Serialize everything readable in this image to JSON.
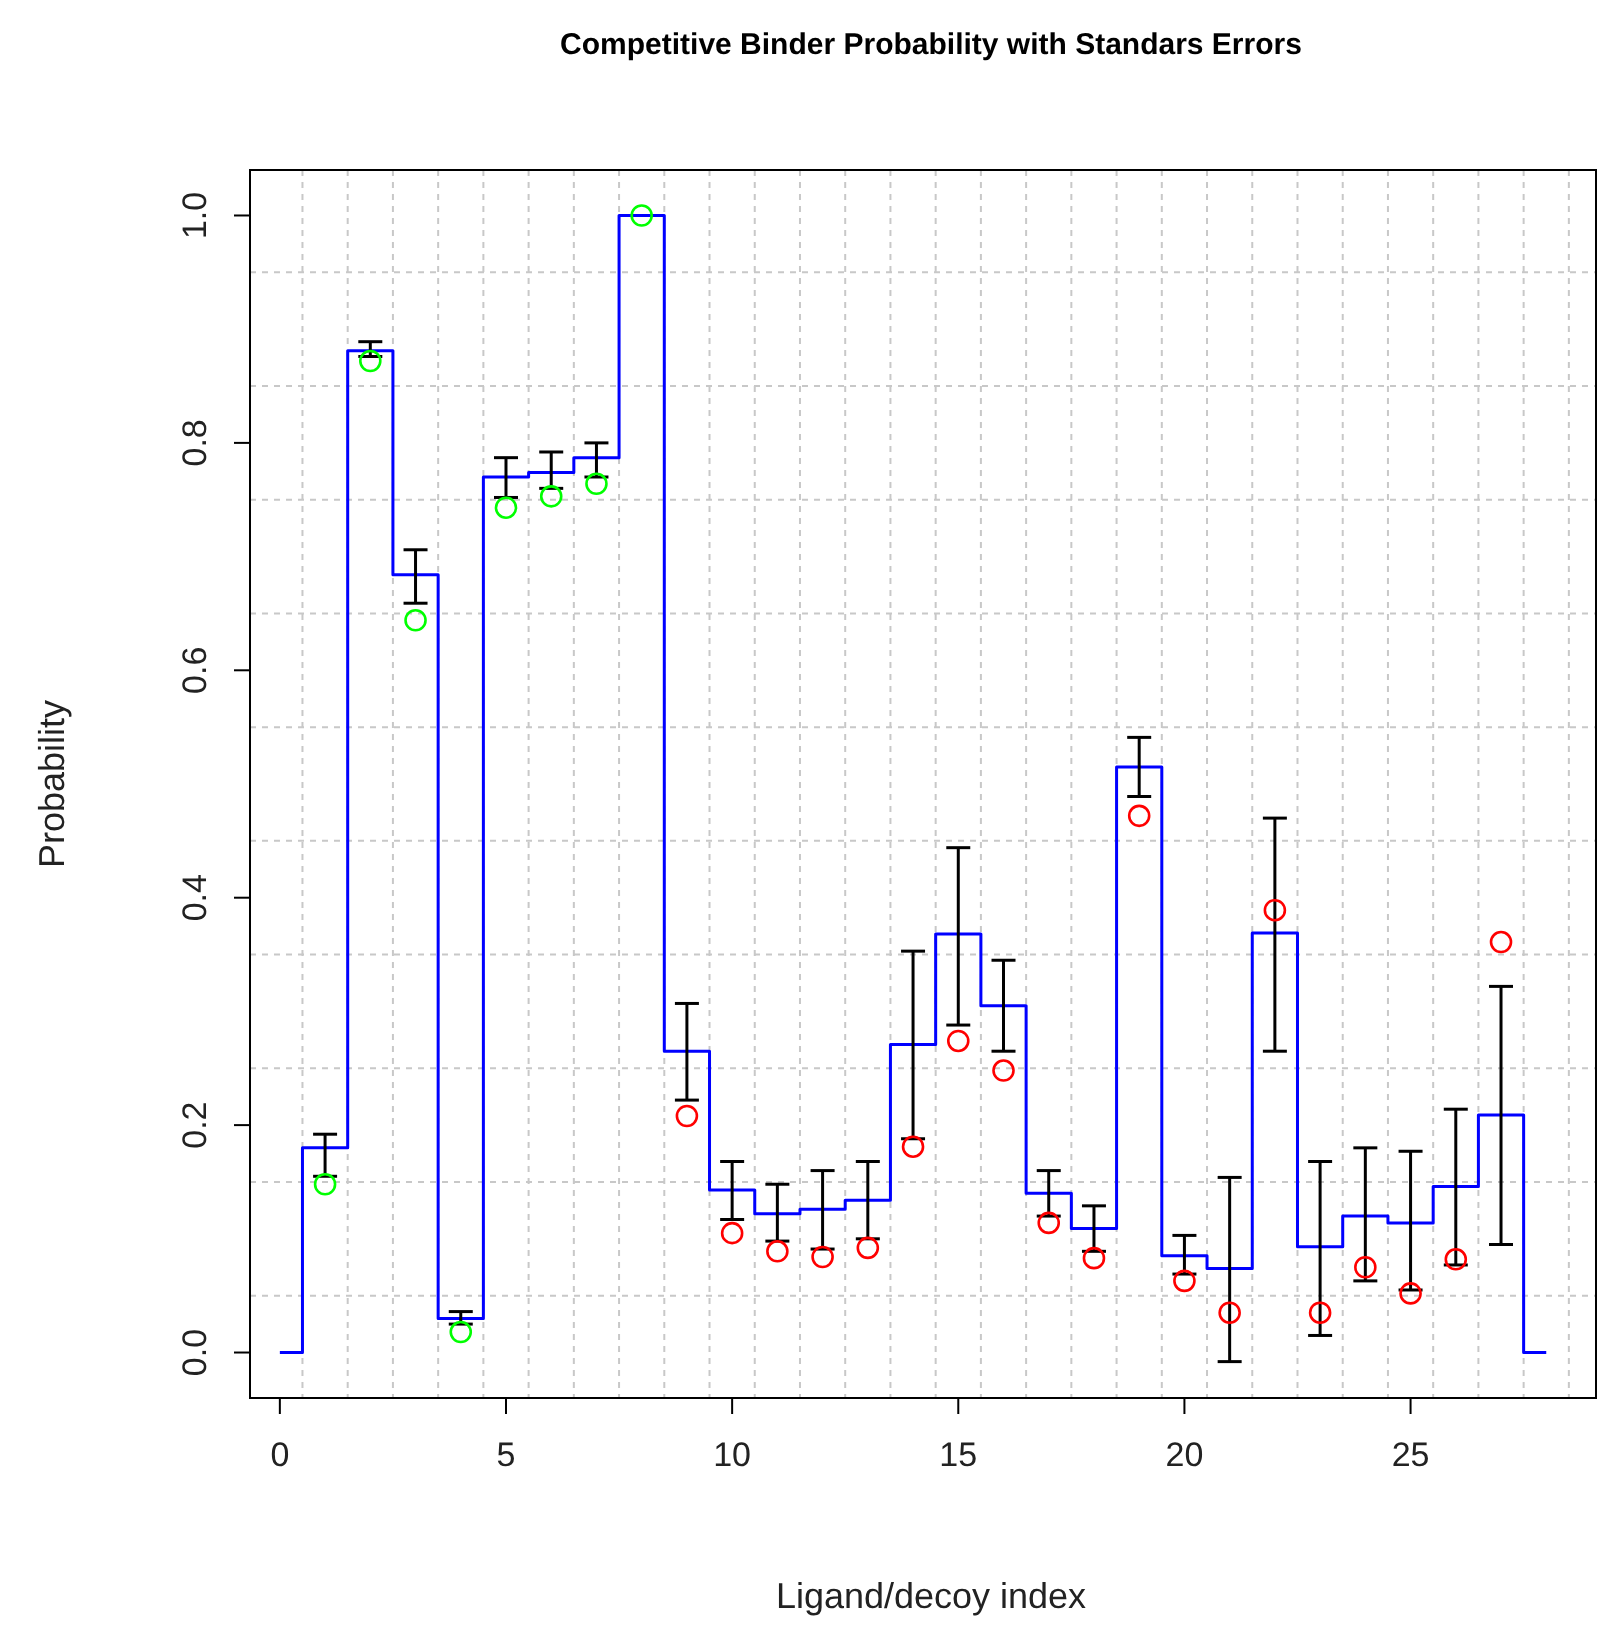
{
  "chart_data": {
    "type": "step",
    "title": "Competitive Binder Probability with Standars Errors",
    "xlabel": "Ligand/decoy index",
    "ylabel": "Probability",
    "xlim": [
      -0.66,
      29.1
    ],
    "ylim": [
      -0.04,
      1.04
    ],
    "xticks": [
      0,
      5,
      10,
      15,
      20,
      25
    ],
    "yticks": [
      {
        "value": 0,
        "label": "0.0"
      },
      {
        "value": 0.2,
        "label": "0.2"
      },
      {
        "value": 0.4,
        "label": "0.4"
      },
      {
        "value": 0.6,
        "label": "0.6"
      },
      {
        "value": 0.8,
        "label": "0.8"
      },
      {
        "value": 1,
        "label": "1.0"
      }
    ],
    "grid": true,
    "series": [
      {
        "color": "#0000ff",
        "x": [
          0,
          1,
          2,
          3,
          4,
          5,
          6,
          7,
          8,
          9,
          10,
          11,
          12,
          13,
          14,
          15,
          16,
          17,
          18,
          19,
          20,
          21,
          22,
          23,
          24,
          25,
          26,
          27,
          28
        ],
        "values": [
          0,
          0.18,
          0.881,
          0.684,
          0.03,
          0.77,
          0.774,
          0.787,
          1.0,
          0.265,
          0.143,
          0.122,
          0.126,
          0.134,
          0.271,
          0.368,
          0.305,
          0.14,
          0.109,
          0.515,
          0.085,
          0.074,
          0.369,
          0.093,
          0.12,
          0.114,
          0.146,
          0.209,
          0
        ],
        "errors": [
          null,
          [
            0.155,
            0.192
          ],
          [
            0.876,
            0.889
          ],
          [
            0.659,
            0.706
          ],
          [
            0.025,
            0.036
          ],
          [
            0.752,
            0.787
          ],
          [
            0.76,
            0.792
          ],
          [
            0.77,
            0.8
          ],
          null,
          [
            0.222,
            0.307
          ],
          [
            0.117,
            0.168
          ],
          [
            0.098,
            0.148
          ],
          [
            0.091,
            0.16
          ],
          [
            0.1,
            0.168
          ],
          [
            0.188,
            0.353
          ],
          [
            0.288,
            0.444
          ],
          [
            0.265,
            0.345
          ],
          [
            0.12,
            0.16
          ],
          [
            0.089,
            0.129
          ],
          [
            0.489,
            0.541
          ],
          [
            0.069,
            0.103
          ],
          [
            -0.008,
            0.154
          ],
          [
            0.265,
            0.47
          ],
          [
            0.015,
            0.168
          ],
          [
            0.063,
            0.18
          ],
          [
            0.055,
            0.177
          ],
          [
            0.077,
            0.214
          ],
          [
            0.095,
            0.322
          ],
          null
        ]
      },
      {
        "type": "scatter",
        "marker": "circle",
        "x": [
          1,
          2,
          3,
          4,
          5,
          6,
          7,
          8,
          9,
          10,
          11,
          12,
          13,
          14,
          15,
          16,
          17,
          18,
          19,
          20,
          21,
          22,
          23,
          24,
          25,
          26,
          27
        ],
        "colors": [
          "#00ff00",
          "#00ff00",
          "#00ff00",
          "#00ff00",
          "#00ff00",
          "#00ff00",
          "#00ff00",
          "#00ff00",
          "#ff0000",
          "#ff0000",
          "#ff0000",
          "#ff0000",
          "#ff0000",
          "#ff0000",
          "#ff0000",
          "#ff0000",
          "#ff0000",
          "#ff0000",
          "#ff0000",
          "#ff0000",
          "#ff0000",
          "#ff0000",
          "#ff0000",
          "#ff0000",
          "#ff0000",
          "#ff0000",
          "#ff0000"
        ],
        "values": [
          0.148,
          0.872,
          0.644,
          0.018,
          0.743,
          0.753,
          0.764,
          1.0,
          0.208,
          0.105,
          0.089,
          0.084,
          0.092,
          0.181,
          0.274,
          0.248,
          0.114,
          0.083,
          0.472,
          0.063,
          0.035,
          0.389,
          0.035,
          0.075,
          0.052,
          0.082,
          0.361
        ]
      }
    ]
  }
}
